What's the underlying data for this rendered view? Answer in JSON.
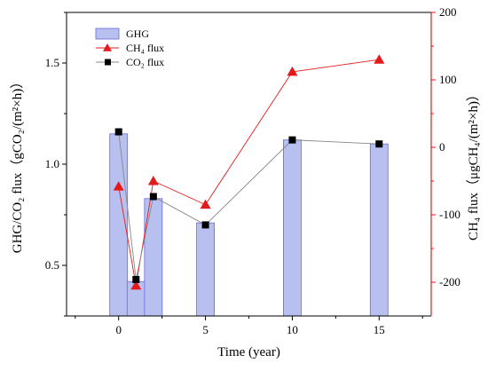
{
  "chart_data": {
    "type": "bar+line",
    "x_axis": {
      "label": "Time (year)",
      "range": [
        -3,
        18
      ],
      "ticks": [
        "0",
        "5",
        "10",
        "15"
      ]
    },
    "y_left": {
      "label": "GHG/CO₂ flux（gCO₂/(m²×h)）",
      "range": [
        0.25,
        1.75
      ],
      "ticks": [
        "0.5",
        "1.0",
        "1.5"
      ],
      "color": "#000000"
    },
    "y_right": {
      "label": "CH₄ flux（μgCH₄/(m²×h)）",
      "range": [
        -250,
        200
      ],
      "ticks": [
        "200",
        "100",
        "0",
        "-100",
        "-200"
      ],
      "color": "#e31a1c"
    },
    "series": [
      {
        "name": "GHG",
        "kind": "bar",
        "axis": "left",
        "color": "#b8c0f0",
        "stroke": "#6a6ad8",
        "x": [
          0,
          1,
          2,
          5,
          10,
          15
        ],
        "values": [
          1.15,
          0.42,
          0.83,
          0.71,
          1.12,
          1.1
        ]
      },
      {
        "name": "CH₄ flux",
        "kind": "line",
        "axis": "right",
        "marker": "triangle",
        "color": "#e31a1c",
        "x": [
          0,
          1,
          2,
          5,
          10,
          15
        ],
        "values": [
          -58,
          -205,
          -50,
          -85,
          112,
          130
        ]
      },
      {
        "name": "CO₂ flux",
        "kind": "line",
        "axis": "left",
        "marker": "square",
        "color": "#000000",
        "line_color": "#888888",
        "x": [
          0,
          1,
          2,
          5,
          10,
          15
        ],
        "values": [
          1.16,
          0.43,
          0.84,
          0.7,
          1.12,
          1.1
        ]
      }
    ],
    "legend": {
      "placement": "top-left",
      "entries": [
        "GHG",
        "CH₄ flux",
        "CO₂ flux"
      ]
    }
  }
}
